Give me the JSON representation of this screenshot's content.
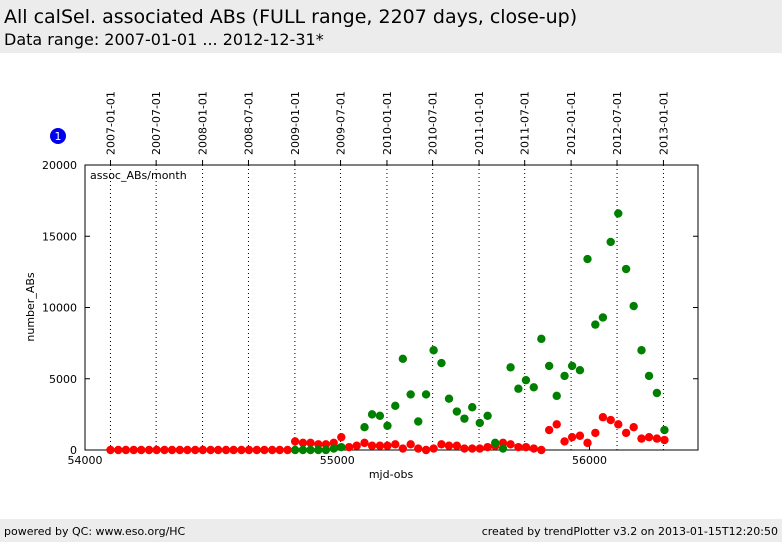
{
  "header": {
    "title": "All calSel. associated ABs (FULL range, 2207 days, close-up)",
    "subtitle": "Data range: 2007-01-01 ... 2012-12-31*"
  },
  "footer": {
    "left": "powered by QC: www.eso.org/HC",
    "right": "created by trendPlotter v3.2 on 2013-01-15T12:20:50"
  },
  "badge": {
    "label": "1",
    "color": "#0000ee"
  },
  "chart_data": {
    "type": "scatter",
    "annotation": "assoc_ABs/month",
    "xlabel": "mjd-obs",
    "ylabel": "number_ABs",
    "xlim": [
      54000,
      56430
    ],
    "ylim": [
      0,
      20000
    ],
    "x_ticks": [
      54000,
      55000,
      56000
    ],
    "y_ticks": [
      0,
      5000,
      10000,
      15000,
      20000
    ],
    "date_ticks": [
      {
        "mjd": 54101,
        "label": "2007-01-01"
      },
      {
        "mjd": 54282,
        "label": "2007-07-01"
      },
      {
        "mjd": 54466,
        "label": "2008-01-01"
      },
      {
        "mjd": 54648,
        "label": "2008-07-01"
      },
      {
        "mjd": 54832,
        "label": "2009-01-01"
      },
      {
        "mjd": 55013,
        "label": "2009-07-01"
      },
      {
        "mjd": 55197,
        "label": "2010-01-01"
      },
      {
        "mjd": 55378,
        "label": "2010-07-01"
      },
      {
        "mjd": 55562,
        "label": "2011-01-01"
      },
      {
        "mjd": 55743,
        "label": "2011-07-01"
      },
      {
        "mjd": 55927,
        "label": "2012-01-01"
      },
      {
        "mjd": 56109,
        "label": "2012-07-01"
      },
      {
        "mjd": 56293,
        "label": "2013-01-01"
      }
    ],
    "series": [
      {
        "color": "#ff0000",
        "x": [
          54101,
          54132,
          54162,
          54193,
          54223,
          54254,
          54284,
          54315,
          54345,
          54376,
          54406,
          54437,
          54467,
          54498,
          54528,
          54559,
          54589,
          54620,
          54650,
          54681,
          54711,
          54742,
          54772,
          54803,
          54833,
          54864,
          54894,
          54925,
          54955,
          54986,
          55016,
          55047,
          55077,
          55108,
          55138,
          55169,
          55199,
          55230,
          55260,
          55291,
          55321,
          55352,
          55382,
          55413,
          55443,
          55474,
          55504,
          55535,
          55565,
          55596,
          55626,
          55657,
          55687,
          55718,
          55748,
          55779,
          55809,
          55840,
          55870,
          55901,
          55931,
          55962,
          55992,
          56023,
          56053,
          56084,
          56114,
          56145,
          56175,
          56206,
          56236,
          56267,
          56297
        ],
        "y": [
          0,
          0,
          0,
          0,
          0,
          0,
          0,
          0,
          0,
          0,
          0,
          0,
          0,
          0,
          0,
          0,
          0,
          0,
          0,
          0,
          0,
          0,
          0,
          0,
          600,
          500,
          500,
          400,
          400,
          500,
          900,
          200,
          300,
          500,
          300,
          300,
          300,
          400,
          100,
          400,
          100,
          0,
          100,
          400,
          300,
          300,
          100,
          100,
          100,
          200,
          300,
          500,
          400,
          200,
          200,
          100,
          0,
          1400,
          1800,
          600,
          900,
          1000,
          500,
          1200,
          2300,
          2100,
          1800,
          1200,
          1600,
          800,
          900,
          800,
          700
        ]
      },
      {
        "color": "#008000",
        "x": [
          54833,
          54864,
          54894,
          54925,
          54955,
          54986,
          55016,
          55108,
          55138,
          55169,
          55199,
          55230,
          55260,
          55291,
          55321,
          55352,
          55382,
          55413,
          55443,
          55474,
          55504,
          55535,
          55565,
          55596,
          55626,
          55657,
          55687,
          55718,
          55748,
          55779,
          55809,
          55840,
          55870,
          55901,
          55931,
          55962,
          55992,
          56023,
          56053,
          56084,
          56114,
          56145,
          56175,
          56206,
          56236,
          56267,
          56297
        ],
        "y": [
          0,
          0,
          0,
          0,
          0,
          100,
          200,
          1600,
          2500,
          2400,
          1700,
          3100,
          6400,
          3900,
          2000,
          3900,
          7000,
          6100,
          3600,
          2700,
          2200,
          3000,
          1900,
          2400,
          500,
          100,
          5800,
          4300,
          4900,
          4400,
          7800,
          5900,
          3800,
          5200,
          5900,
          5600,
          13400,
          8800,
          9300,
          14600,
          16600,
          12700,
          10100,
          7000,
          5200,
          4000,
          1400
        ]
      }
    ]
  }
}
